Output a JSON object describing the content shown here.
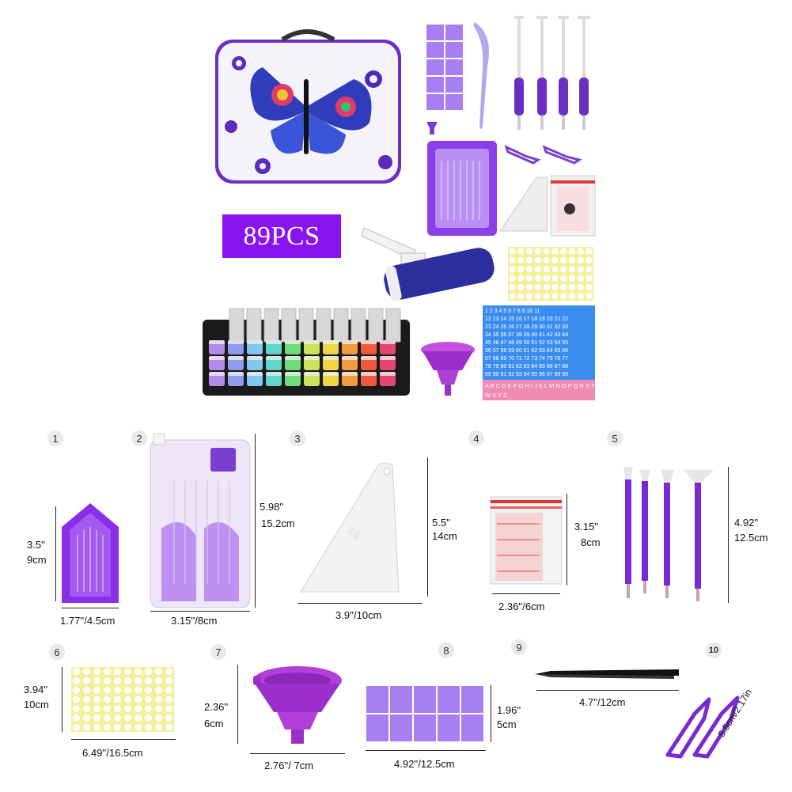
{
  "badge": {
    "text": "89PCS"
  },
  "top_kit": {
    "case_pattern": "butterfly",
    "number_sheet_rows": [
      "1 2 3 4 5 6 7 8 9 10 11",
      "12 13 14 15 16 17 18 19 20 21 22",
      "23 24 25 26 27 28 29 30 31 32 33",
      "34 35 36 37 38 39 40 41 42 43 44",
      "45 46 47 48 49 50 51 52 53 54 55",
      "56 57 58 59 60 61 62 63 64 65 66",
      "67 68 69 70 71 72 73 74 75 76 77",
      "78 79 80 81 82 83 84 85 86 87 88",
      "89 90 91 92 93 94 95 96 97 98 99"
    ],
    "letter_rows": [
      "A B C D E F G H I J K L M N O P Q R S T U V",
      "W X Y Z"
    ]
  },
  "items": [
    {
      "num": "1",
      "height": [
        "3.5''",
        "9cm"
      ],
      "width": "1.77''/4.5cm"
    },
    {
      "num": "2",
      "height": [
        "5.98''",
        "15.2cm"
      ],
      "width": "3.15''/8cm"
    },
    {
      "num": "3",
      "height": [
        "5.5''",
        "14cm"
      ],
      "width": "3.9''/10cm"
    },
    {
      "num": "4",
      "height": [
        "3.15''",
        "8cm"
      ],
      "width": "2.36''/6cm"
    },
    {
      "num": "5",
      "height": [
        "4.92''",
        "12.5cm"
      ]
    },
    {
      "num": "6",
      "height": [
        "3.94''",
        "10cm"
      ],
      "width": "6.49''/16.5cm"
    },
    {
      "num": "7",
      "height": [
        "2.36''",
        "6cm"
      ],
      "width": "2.76''/   7cm"
    },
    {
      "num": "8",
      "height": [
        "1.96''",
        "5cm"
      ],
      "width": "4.92''/12.5cm"
    },
    {
      "num": "9",
      "width": "4.7''/12cm"
    },
    {
      "num": "10",
      "size": "5.5cm/2.17in"
    }
  ],
  "colors": {
    "purple": "#8a14f0",
    "violet": "#7a3fd0",
    "yellow": "#f6ef9a",
    "blue_sheet": "#3b8ef0",
    "pink_sheet": "#f08bb4"
  }
}
